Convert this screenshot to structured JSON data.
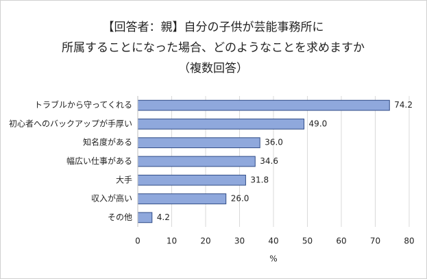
{
  "chart_data": {
    "type": "bar",
    "orientation": "horizontal",
    "title": [
      "【回答者：親】自分の子供が芸能事務所に",
      "所属することになった場合、どのようなことを求めますか",
      "（複数回答）"
    ],
    "categories": [
      "トラブルから守ってくれる",
      "初心者へのバックアップが手厚い",
      "知名度がある",
      "幅広い仕事がある",
      "大手",
      "収入が高い",
      "その他"
    ],
    "values": [
      74.2,
      49.0,
      36.0,
      34.6,
      31.8,
      26.0,
      4.2
    ],
    "value_labels": [
      "74.2",
      "49.0",
      "36.0",
      "34.6",
      "31.8",
      "26.0",
      "4.2"
    ],
    "color": "#8fa8dc",
    "edge_color": "#2f4b86",
    "xlabel": "%",
    "xlim": [
      0,
      80
    ],
    "xticks": [
      0,
      10,
      20,
      30,
      40,
      50,
      60,
      70,
      80
    ],
    "grid": true
  }
}
